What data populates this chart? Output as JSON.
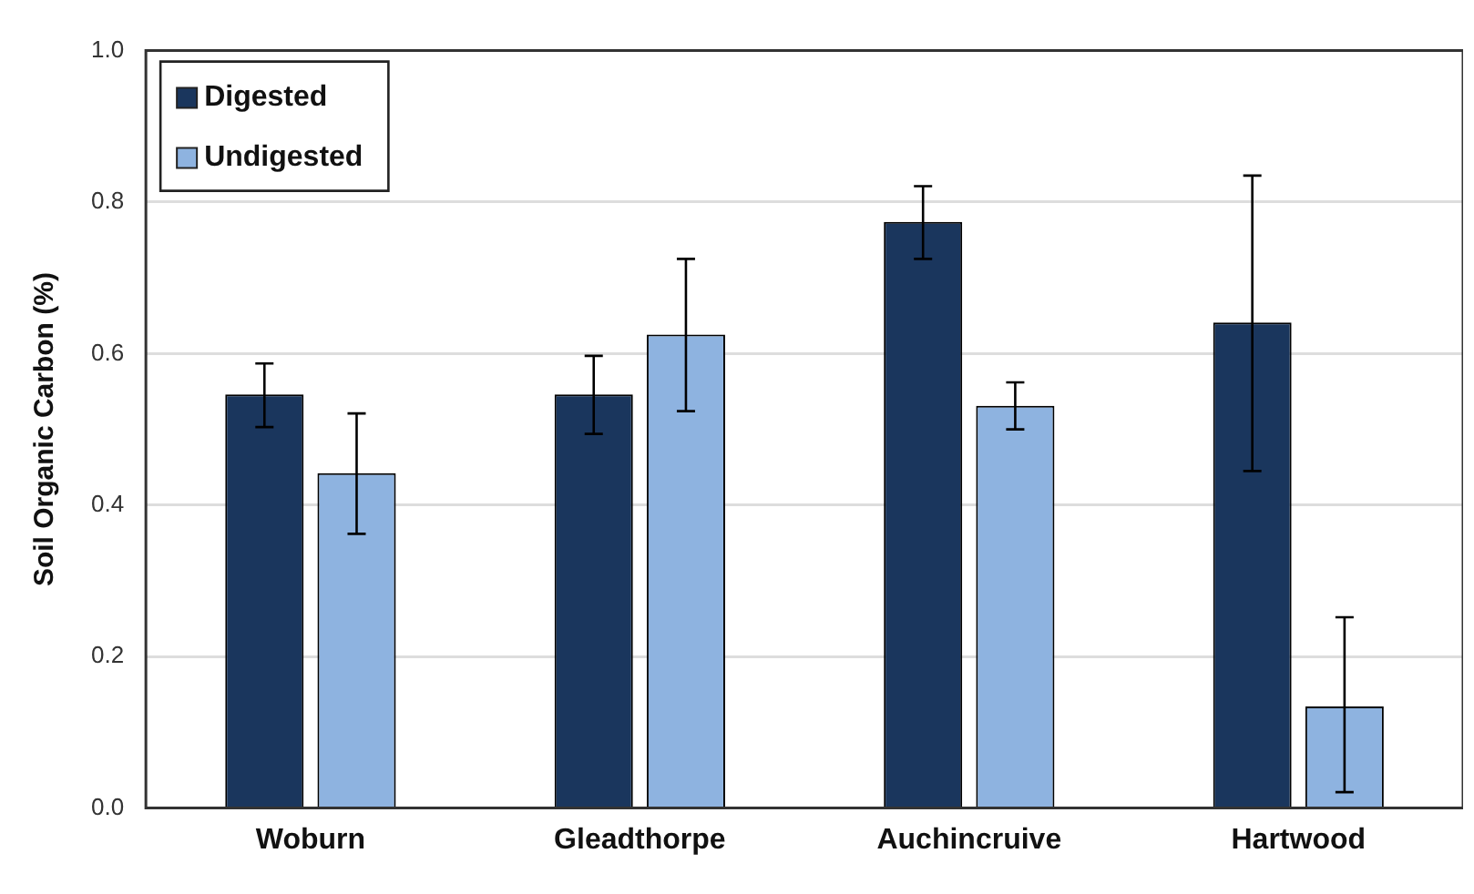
{
  "chart_data": {
    "type": "bar",
    "ylabel": "Soil Organic Carbon (%)",
    "categories": [
      "Woburn",
      "Gleadthorpe",
      "Auchincruive",
      "Hartwood"
    ],
    "series": [
      {
        "name": "Digested",
        "color": "#1a365d",
        "values": [
          0.546,
          0.546,
          0.774,
          0.641
        ],
        "errors": [
          [
            0.503,
            0.587
          ],
          [
            0.494,
            0.597
          ],
          [
            0.725,
            0.821
          ],
          [
            0.445,
            0.835
          ]
        ]
      },
      {
        "name": "Undigested",
        "color": "#8eb3e0",
        "values": [
          0.442,
          0.625,
          0.531,
          0.134
        ],
        "errors": [
          [
            0.362,
            0.521
          ],
          [
            0.524,
            0.725
          ],
          [
            0.5,
            0.562
          ],
          [
            0.021,
            0.252
          ]
        ]
      }
    ],
    "ylim": [
      0,
      1
    ],
    "yticks": [
      {
        "value": 0,
        "label": "0.0"
      },
      {
        "value": 0.2,
        "label": "0.2"
      },
      {
        "value": 0.4,
        "label": "0.4"
      },
      {
        "value": 0.6,
        "label": "0.6"
      },
      {
        "value": 0.8,
        "label": "0.8"
      },
      {
        "value": 1,
        "label": "1.0"
      }
    ],
    "grid": "y",
    "legend": "top left"
  }
}
